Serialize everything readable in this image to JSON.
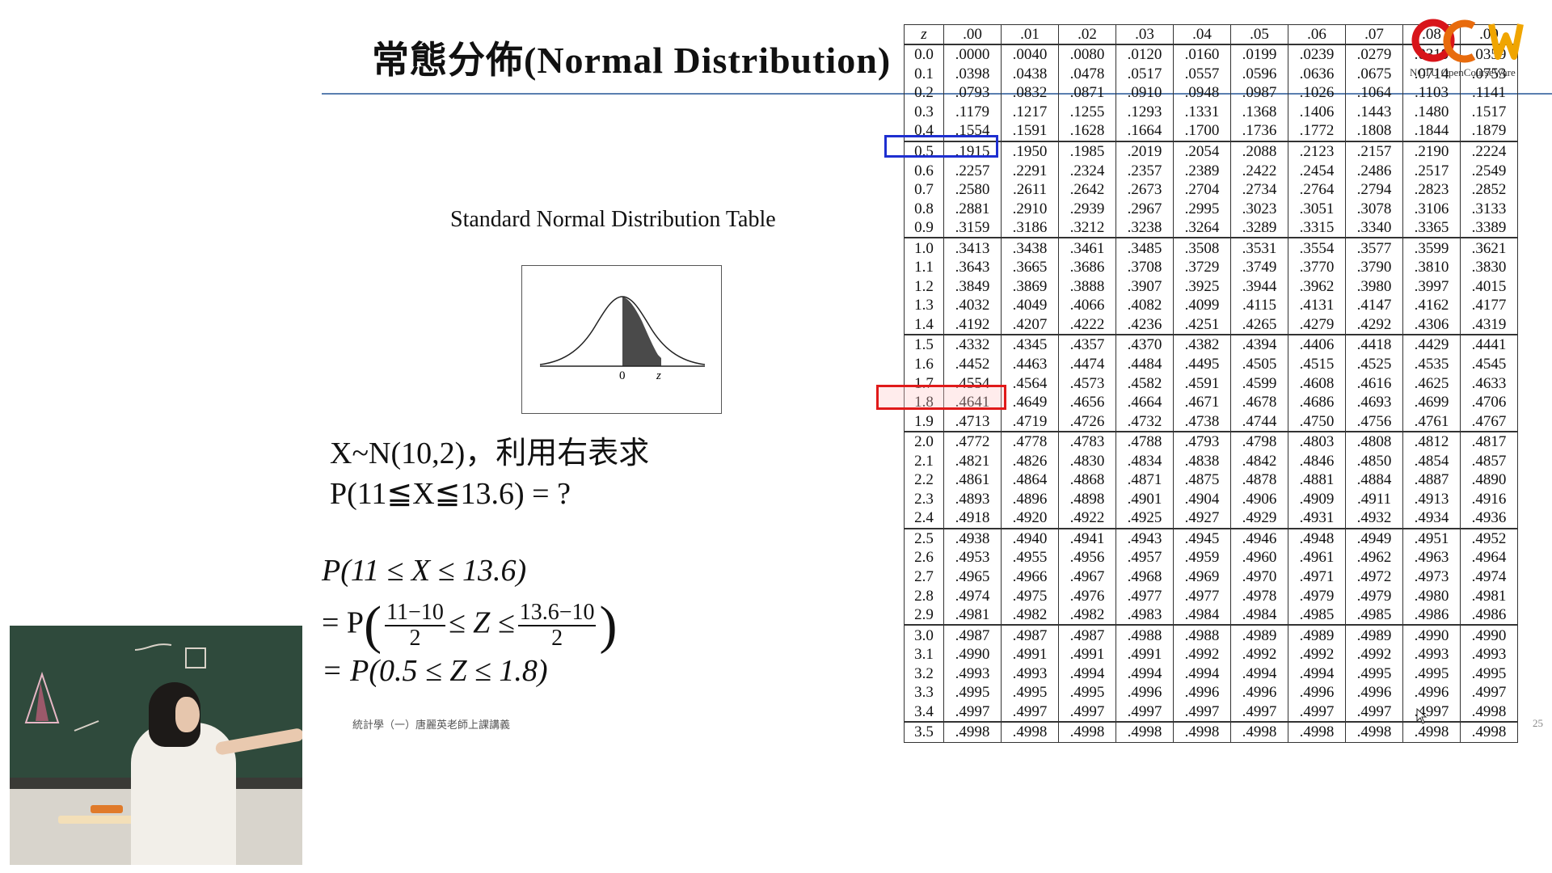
{
  "slide": {
    "title": "常態分佈(Normal Distribution)",
    "table_caption": "Standard Normal Distribution Table",
    "curve_labels": {
      "zero": "0",
      "z": "z"
    },
    "question": {
      "line1": "X~N(10,2)，利用右表求",
      "line2": "P(11≦X≦13.6) = ?"
    },
    "solution": {
      "line1": "P(11 ≤ X ≤ 13.6)",
      "line2_prefix": "= P",
      "frac1_num": "11−10",
      "frac1_den": "2",
      "middle": "≤ Z ≤",
      "frac2_num": "13.6−10",
      "frac2_den": "2",
      "line3": "= P(0.5 ≤ Z ≤ 1.8)"
    },
    "footer": "統計學（一）唐麗英老師上課講義",
    "page_number": "25",
    "logo": {
      "text": "OCW",
      "sub": "NCTU OpenCourseWare"
    }
  },
  "colors": {
    "title_rule": "#5a7fb0",
    "highlight_blue": "#1e2fd0",
    "highlight_red": "#e01a1a"
  },
  "table": {
    "header": [
      "z",
      ".00",
      ".01",
      ".02",
      ".03",
      ".04",
      ".05",
      ".06",
      ".07",
      ".08",
      ".09"
    ],
    "rows": [
      [
        "0.0",
        ".0000",
        ".0040",
        ".0080",
        ".0120",
        ".0160",
        ".0199",
        ".0239",
        ".0279",
        ".0319",
        ".0359"
      ],
      [
        "0.1",
        ".0398",
        ".0438",
        ".0478",
        ".0517",
        ".0557",
        ".0596",
        ".0636",
        ".0675",
        ".0714",
        ".0753"
      ],
      [
        "0.2",
        ".0793",
        ".0832",
        ".0871",
        ".0910",
        ".0948",
        ".0987",
        ".1026",
        ".1064",
        ".1103",
        ".1141"
      ],
      [
        "0.3",
        ".1179",
        ".1217",
        ".1255",
        ".1293",
        ".1331",
        ".1368",
        ".1406",
        ".1443",
        ".1480",
        ".1517"
      ],
      [
        "0.4",
        ".1554",
        ".1591",
        ".1628",
        ".1664",
        ".1700",
        ".1736",
        ".1772",
        ".1808",
        ".1844",
        ".1879"
      ],
      [
        "0.5",
        ".1915",
        ".1950",
        ".1985",
        ".2019",
        ".2054",
        ".2088",
        ".2123",
        ".2157",
        ".2190",
        ".2224"
      ],
      [
        "0.6",
        ".2257",
        ".2291",
        ".2324",
        ".2357",
        ".2389",
        ".2422",
        ".2454",
        ".2486",
        ".2517",
        ".2549"
      ],
      [
        "0.7",
        ".2580",
        ".2611",
        ".2642",
        ".2673",
        ".2704",
        ".2734",
        ".2764",
        ".2794",
        ".2823",
        ".2852"
      ],
      [
        "0.8",
        ".2881",
        ".2910",
        ".2939",
        ".2967",
        ".2995",
        ".3023",
        ".3051",
        ".3078",
        ".3106",
        ".3133"
      ],
      [
        "0.9",
        ".3159",
        ".3186",
        ".3212",
        ".3238",
        ".3264",
        ".3289",
        ".3315",
        ".3340",
        ".3365",
        ".3389"
      ],
      [
        "1.0",
        ".3413",
        ".3438",
        ".3461",
        ".3485",
        ".3508",
        ".3531",
        ".3554",
        ".3577",
        ".3599",
        ".3621"
      ],
      [
        "1.1",
        ".3643",
        ".3665",
        ".3686",
        ".3708",
        ".3729",
        ".3749",
        ".3770",
        ".3790",
        ".3810",
        ".3830"
      ],
      [
        "1.2",
        ".3849",
        ".3869",
        ".3888",
        ".3907",
        ".3925",
        ".3944",
        ".3962",
        ".3980",
        ".3997",
        ".4015"
      ],
      [
        "1.3",
        ".4032",
        ".4049",
        ".4066",
        ".4082",
        ".4099",
        ".4115",
        ".4131",
        ".4147",
        ".4162",
        ".4177"
      ],
      [
        "1.4",
        ".4192",
        ".4207",
        ".4222",
        ".4236",
        ".4251",
        ".4265",
        ".4279",
        ".4292",
        ".4306",
        ".4319"
      ],
      [
        "1.5",
        ".4332",
        ".4345",
        ".4357",
        ".4370",
        ".4382",
        ".4394",
        ".4406",
        ".4418",
        ".4429",
        ".4441"
      ],
      [
        "1.6",
        ".4452",
        ".4463",
        ".4474",
        ".4484",
        ".4495",
        ".4505",
        ".4515",
        ".4525",
        ".4535",
        ".4545"
      ],
      [
        "1.7",
        ".4554",
        ".4564",
        ".4573",
        ".4582",
        ".4591",
        ".4599",
        ".4608",
        ".4616",
        ".4625",
        ".4633"
      ],
      [
        "1.8",
        ".4641",
        ".4649",
        ".4656",
        ".4664",
        ".4671",
        ".4678",
        ".4686",
        ".4693",
        ".4699",
        ".4706"
      ],
      [
        "1.9",
        ".4713",
        ".4719",
        ".4726",
        ".4732",
        ".4738",
        ".4744",
        ".4750",
        ".4756",
        ".4761",
        ".4767"
      ],
      [
        "2.0",
        ".4772",
        ".4778",
        ".4783",
        ".4788",
        ".4793",
        ".4798",
        ".4803",
        ".4808",
        ".4812",
        ".4817"
      ],
      [
        "2.1",
        ".4821",
        ".4826",
        ".4830",
        ".4834",
        ".4838",
        ".4842",
        ".4846",
        ".4850",
        ".4854",
        ".4857"
      ],
      [
        "2.2",
        ".4861",
        ".4864",
        ".4868",
        ".4871",
        ".4875",
        ".4878",
        ".4881",
        ".4884",
        ".4887",
        ".4890"
      ],
      [
        "2.3",
        ".4893",
        ".4896",
        ".4898",
        ".4901",
        ".4904",
        ".4906",
        ".4909",
        ".4911",
        ".4913",
        ".4916"
      ],
      [
        "2.4",
        ".4918",
        ".4920",
        ".4922",
        ".4925",
        ".4927",
        ".4929",
        ".4931",
        ".4932",
        ".4934",
        ".4936"
      ],
      [
        "2.5",
        ".4938",
        ".4940",
        ".4941",
        ".4943",
        ".4945",
        ".4946",
        ".4948",
        ".4949",
        ".4951",
        ".4952"
      ],
      [
        "2.6",
        ".4953",
        ".4955",
        ".4956",
        ".4957",
        ".4959",
        ".4960",
        ".4961",
        ".4962",
        ".4963",
        ".4964"
      ],
      [
        "2.7",
        ".4965",
        ".4966",
        ".4967",
        ".4968",
        ".4969",
        ".4970",
        ".4971",
        ".4972",
        ".4973",
        ".4974"
      ],
      [
        "2.8",
        ".4974",
        ".4975",
        ".4976",
        ".4977",
        ".4977",
        ".4978",
        ".4979",
        ".4979",
        ".4980",
        ".4981"
      ],
      [
        "2.9",
        ".4981",
        ".4982",
        ".4982",
        ".4983",
        ".4984",
        ".4984",
        ".4985",
        ".4985",
        ".4986",
        ".4986"
      ],
      [
        "3.0",
        ".4987",
        ".4987",
        ".4987",
        ".4988",
        ".4988",
        ".4989",
        ".4989",
        ".4989",
        ".4990",
        ".4990"
      ],
      [
        "3.1",
        ".4990",
        ".4991",
        ".4991",
        ".4991",
        ".4992",
        ".4992",
        ".4992",
        ".4992",
        ".4993",
        ".4993"
      ],
      [
        "3.2",
        ".4993",
        ".4993",
        ".4994",
        ".4994",
        ".4994",
        ".4994",
        ".4994",
        ".4995",
        ".4995",
        ".4995"
      ],
      [
        "3.3",
        ".4995",
        ".4995",
        ".4995",
        ".4996",
        ".4996",
        ".4996",
        ".4996",
        ".4996",
        ".4996",
        ".4997"
      ],
      [
        "3.4",
        ".4997",
        ".4997",
        ".4997",
        ".4997",
        ".4997",
        ".4997",
        ".4997",
        ".4997",
        ".4997",
        ".4998"
      ],
      [
        "3.5",
        ".4998",
        ".4998",
        ".4998",
        ".4998",
        ".4998",
        ".4998",
        ".4998",
        ".4998",
        ".4998",
        ".4998"
      ]
    ],
    "highlighted": [
      {
        "z": "0.5",
        "value": ".1915",
        "color": "blue"
      },
      {
        "z": "1.8",
        "value": ".4641",
        "color": "red"
      }
    ]
  }
}
